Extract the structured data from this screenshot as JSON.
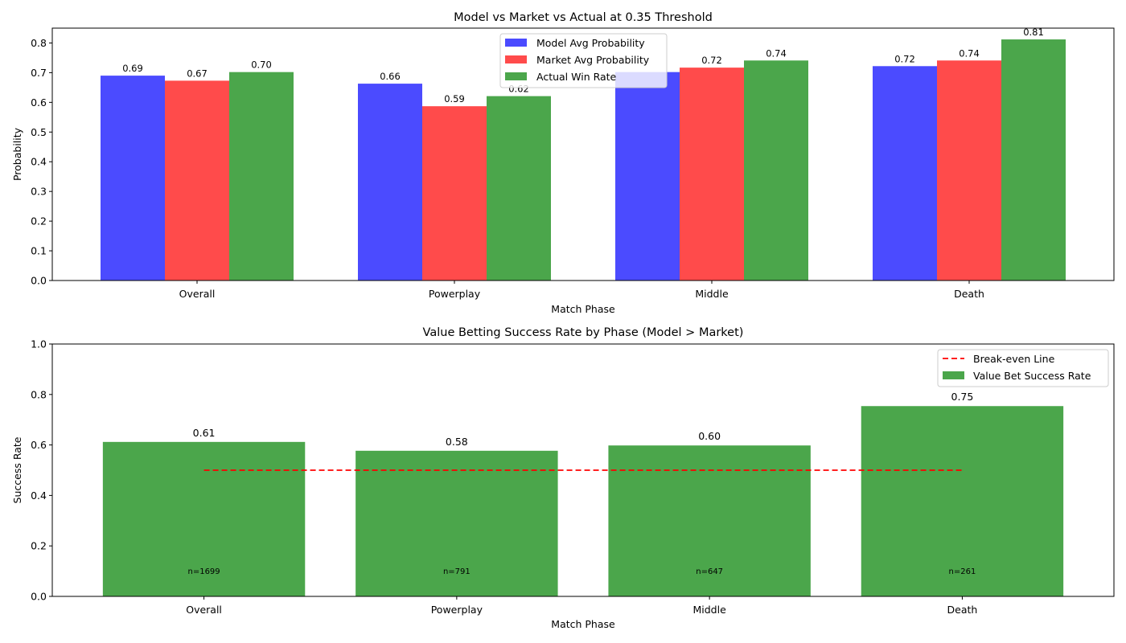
{
  "chart_data": [
    {
      "type": "bar",
      "title": "Model vs Market vs Actual at 0.35 Threshold",
      "xlabel": "Match Phase",
      "ylabel": "Probability",
      "categories": [
        "Overall",
        "Powerplay",
        "Middle",
        "Death"
      ],
      "ylim": [
        0,
        0.85
      ],
      "yticks": [
        "0.0",
        "0.1",
        "0.2",
        "0.3",
        "0.4",
        "0.5",
        "0.6",
        "0.7",
        "0.8"
      ],
      "grid": false,
      "legend_position": "top-center",
      "series": [
        {
          "name": "Model Avg Probability",
          "color": "#4b4bff",
          "values": [
            0.69,
            0.663,
            0.702,
            0.722
          ],
          "labels": [
            "0.69",
            "0.66",
            "",
            "0.72"
          ]
        },
        {
          "name": "Market Avg Probability",
          "color": "#ff4b4b",
          "values": [
            0.673,
            0.587,
            0.717,
            0.741
          ],
          "labels": [
            "0.67",
            "0.59",
            "0.72",
            "0.74"
          ]
        },
        {
          "name": "Actual Win Rate",
          "color": "#4ba64b",
          "values": [
            0.702,
            0.621,
            0.741,
            0.812
          ],
          "labels": [
            "0.70",
            "0.62",
            "0.74",
            "0.81"
          ]
        }
      ]
    },
    {
      "type": "bar",
      "title": "Value Betting Success Rate by Phase (Model > Market)",
      "xlabel": "Match Phase",
      "ylabel": "Success Rate",
      "categories": [
        "Overall",
        "Powerplay",
        "Middle",
        "Death"
      ],
      "ylim": [
        0,
        1.0
      ],
      "yticks": [
        "0.0",
        "0.2",
        "0.4",
        "0.6",
        "0.8",
        "1.0"
      ],
      "grid": false,
      "legend_position": "top-right",
      "series": [
        {
          "name": "Value Bet Success Rate",
          "color": "#4ba64b",
          "values": [
            0.612,
            0.577,
            0.598,
            0.754
          ],
          "labels": [
            "0.61",
            "0.58",
            "0.60",
            "0.75"
          ]
        }
      ],
      "sample_sizes": [
        "n=1699",
        "n=791",
        "n=647",
        "n=261"
      ],
      "reference_line": {
        "name": "Break-even Line",
        "value": 0.5,
        "color": "#ff0000",
        "style": "dashed"
      }
    }
  ]
}
